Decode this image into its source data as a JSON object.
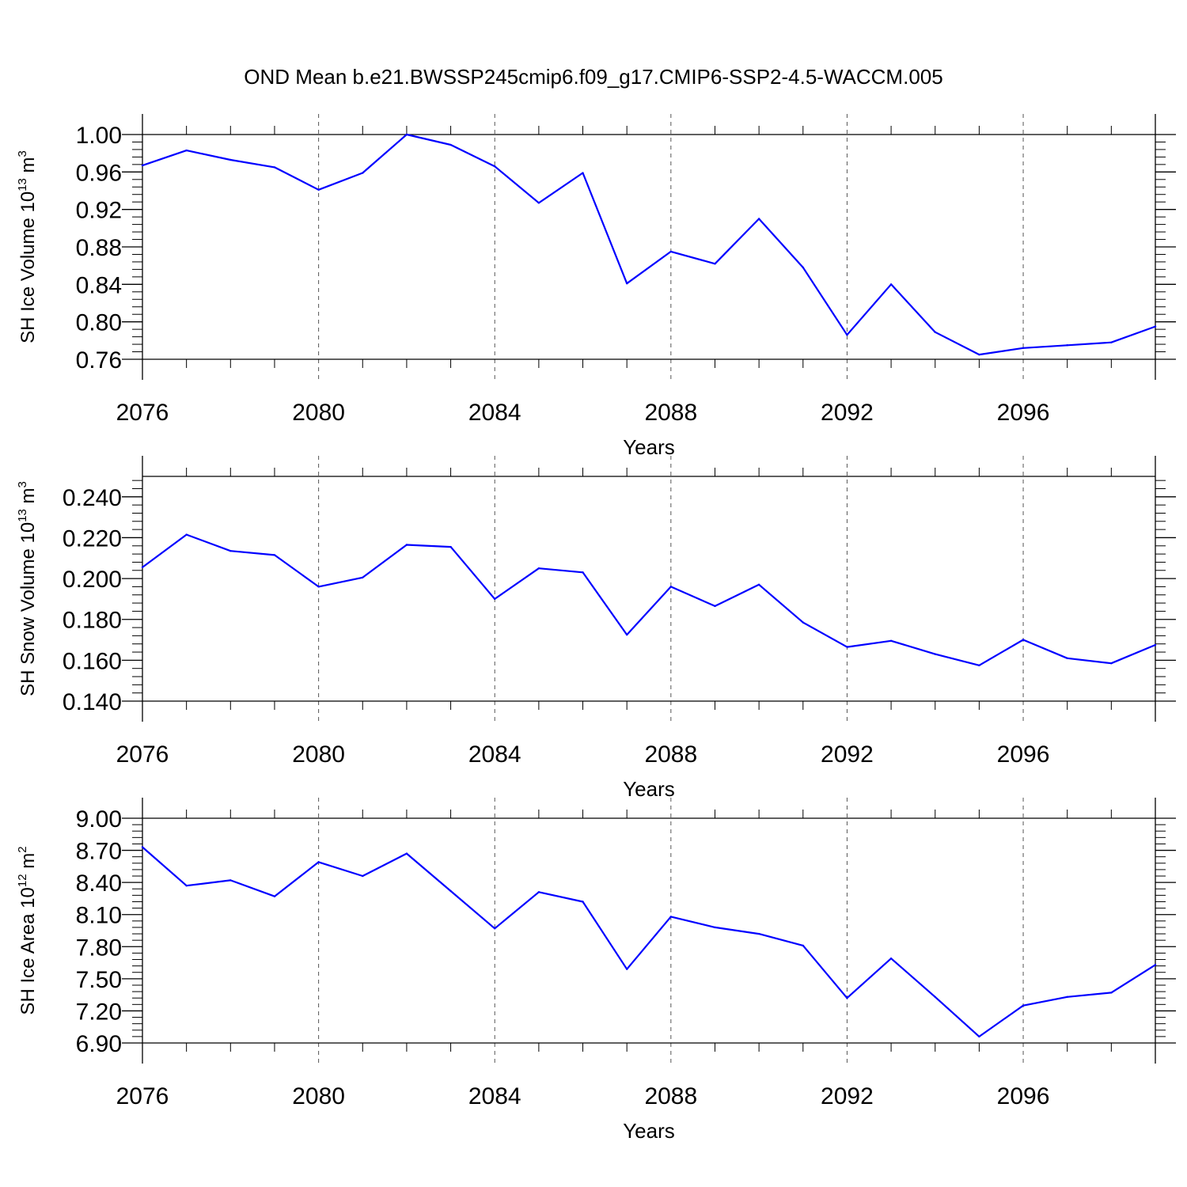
{
  "title": "OND Mean b.e21.BWSSP245cmip6.f09_g17.CMIP6-SSP2-4.5-WACCM.005",
  "colors": {
    "line": "#0000ff",
    "axis": "#000000",
    "grid": "#555555"
  },
  "chart_data": [
    {
      "type": "line",
      "ylabel_parts": {
        "base": "SH Ice Volume 10",
        "exp1": "13",
        "unit": " m",
        "exp2": "3"
      },
      "xlabel": "Years",
      "xlim": [
        2076,
        2099
      ],
      "ylim": [
        0.76,
        1.0
      ],
      "x_ticks": [
        2076,
        2080,
        2084,
        2088,
        2092,
        2096
      ],
      "x_tick_labels": [
        "2076",
        "2080",
        "2084",
        "2088",
        "2092",
        "2096"
      ],
      "y_ticks": [
        0.76,
        0.8,
        0.84,
        0.88,
        0.92,
        0.96,
        1.0
      ],
      "y_tick_labels": [
        "0.76",
        "0.80",
        "0.84",
        "0.88",
        "0.92",
        "0.96",
        "1.00"
      ],
      "grid": "dashed vertical at major x ticks",
      "x": [
        2076,
        2077,
        2078,
        2079,
        2080,
        2081,
        2082,
        2083,
        2084,
        2085,
        2086,
        2087,
        2088,
        2089,
        2090,
        2091,
        2092,
        2093,
        2094,
        2095,
        2096,
        2097,
        2098,
        2099
      ],
      "values": [
        0.967,
        0.983,
        0.973,
        0.965,
        0.941,
        0.959,
        1.0,
        0.989,
        0.966,
        0.927,
        0.959,
        0.841,
        0.875,
        0.862,
        0.91,
        0.858,
        0.786,
        0.84,
        0.789,
        0.765,
        0.772,
        0.775,
        0.778,
        0.795
      ]
    },
    {
      "type": "line",
      "ylabel_parts": {
        "base": "SH Snow Volume 10",
        "exp1": "13",
        "unit": " m",
        "exp2": "3"
      },
      "xlabel": "Years",
      "xlim": [
        2076,
        2099
      ],
      "ylim": [
        0.14,
        0.25
      ],
      "x_ticks": [
        2076,
        2080,
        2084,
        2088,
        2092,
        2096
      ],
      "x_tick_labels": [
        "2076",
        "2080",
        "2084",
        "2088",
        "2092",
        "2096"
      ],
      "y_ticks": [
        0.14,
        0.16,
        0.18,
        0.2,
        0.22,
        0.24
      ],
      "y_tick_labels": [
        "0.140",
        "0.160",
        "0.180",
        "0.200",
        "0.220",
        "0.240"
      ],
      "grid": "dashed vertical at major x ticks",
      "x": [
        2076,
        2077,
        2078,
        2079,
        2080,
        2081,
        2082,
        2083,
        2084,
        2085,
        2086,
        2087,
        2088,
        2089,
        2090,
        2091,
        2092,
        2093,
        2094,
        2095,
        2096,
        2097,
        2098,
        2099
      ],
      "values": [
        0.2055,
        0.2215,
        0.2135,
        0.2115,
        0.196,
        0.2005,
        0.2165,
        0.2155,
        0.19,
        0.205,
        0.203,
        0.1725,
        0.196,
        0.1865,
        0.197,
        0.1785,
        0.1665,
        0.1695,
        0.163,
        0.1575,
        0.17,
        0.161,
        0.1585,
        0.1675
      ]
    },
    {
      "type": "line",
      "ylabel_parts": {
        "base": "SH Ice Area 10",
        "exp1": "12",
        "unit": " m",
        "exp2": "2"
      },
      "xlabel": "Years",
      "xlim": [
        2076,
        2099
      ],
      "ylim": [
        6.9,
        9.0
      ],
      "x_ticks": [
        2076,
        2080,
        2084,
        2088,
        2092,
        2096
      ],
      "x_tick_labels": [
        "2076",
        "2080",
        "2084",
        "2088",
        "2092",
        "2096"
      ],
      "y_ticks": [
        6.9,
        7.2,
        7.5,
        7.8,
        8.1,
        8.4,
        8.7,
        9.0
      ],
      "y_tick_labels": [
        "6.90",
        "7.20",
        "7.50",
        "7.80",
        "8.10",
        "8.40",
        "8.70",
        "9.00"
      ],
      "grid": "dashed vertical at major x ticks",
      "x": [
        2076,
        2077,
        2078,
        2079,
        2080,
        2081,
        2082,
        2083,
        2084,
        2085,
        2086,
        2087,
        2088,
        2089,
        2090,
        2091,
        2092,
        2093,
        2094,
        2095,
        2096,
        2097,
        2098,
        2099
      ],
      "values": [
        8.73,
        8.37,
        8.42,
        8.27,
        8.59,
        8.46,
        8.67,
        8.32,
        7.97,
        8.31,
        8.22,
        7.59,
        8.08,
        7.98,
        7.92,
        7.81,
        7.32,
        7.69,
        7.33,
        6.96,
        7.25,
        7.33,
        7.37,
        7.63
      ]
    }
  ]
}
